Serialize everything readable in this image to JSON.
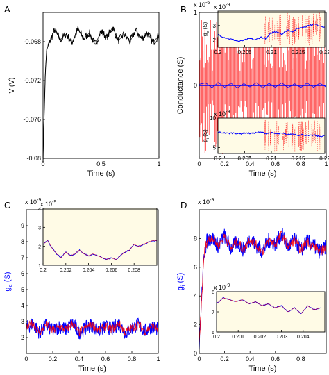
{
  "colors": {
    "axis": "#000000",
    "voltage_trace": "#000000",
    "mean_conductance": "#0000ff",
    "exact_conductance": "#ff0000",
    "inset_background": "#fffbe6"
  },
  "chart_data": [
    {
      "panel": "A",
      "type": "line",
      "xlabel": "Time (s)",
      "ylabel": "V (V)",
      "xlim": [
        0,
        1
      ],
      "ylim": [
        -0.08,
        -0.065
      ],
      "xticks": [
        0,
        0.5,
        1
      ],
      "yticks": [
        -0.068,
        -0.072,
        -0.076,
        -0.08
      ],
      "series": [
        {
          "x": [
            0,
            0.01,
            0.02,
            0.03,
            0.05,
            0.075,
            0.1,
            0.15,
            0.2,
            0.25,
            0.3,
            0.35,
            0.4,
            0.45,
            0.5,
            0.55,
            0.6,
            0.65,
            0.7,
            0.75,
            0.8,
            0.85,
            0.9,
            0.95,
            1.0
          ],
          "y": [
            -0.08,
            -0.0752,
            -0.0712,
            -0.069,
            -0.0682,
            -0.0675,
            -0.0668,
            -0.0678,
            -0.0672,
            -0.0681,
            -0.0667,
            -0.0677,
            -0.0671,
            -0.0683,
            -0.0669,
            -0.0676,
            -0.0665,
            -0.0679,
            -0.0672,
            -0.068,
            -0.0668,
            -0.0677,
            -0.0671,
            -0.0681,
            -0.0673
          ]
        }
      ]
    },
    {
      "panel": "B",
      "type": "line",
      "xlabel": "Time (s)",
      "ylabel": "Conductance (S)",
      "exponent_label": "x 10",
      "exponent": "-6",
      "xlim": [
        0,
        1
      ],
      "ylim": [
        -1,
        1
      ],
      "xticks": [
        0,
        0.2,
        0.4,
        0.6,
        0.8,
        1
      ],
      "yticks": [
        1,
        0
      ],
      "series": [
        {
          "x": [
            0,
            0.05,
            0.1,
            0.15,
            0.2,
            0.25,
            0.3,
            0.35,
            0.4,
            0.45,
            0.5,
            0.55,
            0.6,
            0.65,
            0.7,
            0.75,
            0.8,
            0.85,
            0.9,
            0.95,
            1.0
          ],
          "y": [
            0.3,
            0.7,
            -0.6,
            0.8,
            -0.5,
            0.6,
            -0.7,
            0.5,
            -0.4,
            0.75,
            -0.65,
            0.55,
            -0.5,
            0.7,
            -0.6,
            0.45,
            -0.55,
            0.65,
            -0.5,
            0.6,
            -0.45
          ]
        }
      ],
      "insets": [
        {
          "ylabel": "g_e (S)",
          "exponent_label": "x 10",
          "exponent": "-9",
          "xlim": [
            0.2,
            0.22
          ],
          "ylim": [
            1.5,
            4
          ],
          "xticks": [
            0.2,
            0.205,
            0.21,
            0.215,
            0.22
          ],
          "yticks": [
            2,
            3
          ],
          "series": [
            {
              "x": [
                0.2,
                0.201,
                0.202,
                0.203,
                0.204,
                0.205,
                0.206,
                0.207,
                0.208,
                0.209,
                0.21,
                0.211,
                0.212,
                0.213,
                0.214,
                0.215,
                0.216,
                0.217,
                0.218,
                0.219,
                0.22
              ],
              "y": [
                2.4,
                2.2,
                2.1,
                2.0,
                1.9,
                2.0,
                2.1,
                2.0,
                2.2,
                2.1,
                2.5,
                2.6,
                2.4,
                2.7,
                2.6,
                2.8,
                2.9,
                3.0,
                3.1,
                3.0,
                2.9
              ]
            }
          ]
        },
        {
          "ylabel": "g_i (S)",
          "exponent_label": "x 10",
          "exponent": "-9",
          "xlim": [
            0.2,
            0.22
          ],
          "ylim": [
            4,
            10
          ],
          "xticks": [
            0.2,
            0.205,
            0.21,
            0.215,
            0.22
          ],
          "yticks": [
            5,
            10
          ],
          "series": [
            {
              "x": [
                0.2,
                0.201,
                0.202,
                0.203,
                0.204,
                0.205,
                0.206,
                0.207,
                0.208,
                0.209,
                0.21,
                0.211,
                0.212,
                0.213,
                0.214,
                0.215,
                0.216,
                0.217,
                0.218,
                0.219,
                0.22
              ],
              "y": [
                7.6,
                7.5,
                7.4,
                7.5,
                7.3,
                7.5,
                7.4,
                7.5,
                7.6,
                7.4,
                7.5,
                7.3,
                7.4,
                7.2,
                7.3,
                7.1,
                7.2,
                7.0,
                7.1,
                6.9,
                7.0
              ]
            }
          ]
        }
      ]
    },
    {
      "panel": "C",
      "type": "line",
      "xlabel": "Time (s)",
      "ylabel": "g_e (S)",
      "exponent_label": "x 10",
      "exponent": "-9",
      "xlim": [
        0,
        1
      ],
      "ylim": [
        1,
        10
      ],
      "xticks": [
        0,
        0.2,
        0.4,
        0.6,
        0.8,
        1
      ],
      "yticks": [
        2,
        3,
        4,
        5,
        6,
        7,
        8,
        9
      ],
      "series": [
        {
          "x": [
            0,
            0.05,
            0.1,
            0.15,
            0.2,
            0.25,
            0.3,
            0.35,
            0.4,
            0.45,
            0.5,
            0.55,
            0.6,
            0.65,
            0.7,
            0.75,
            0.8,
            0.85,
            0.9,
            0.95,
            1.0
          ],
          "y": [
            2.6,
            2.9,
            2.3,
            2.8,
            2.4,
            2.7,
            2.5,
            2.9,
            2.3,
            2.6,
            2.8,
            2.4,
            2.7,
            2.5,
            2.9,
            2.3,
            2.6,
            2.8,
            2.4,
            2.7,
            2.5
          ]
        }
      ],
      "insets": [
        {
          "exponent_label": "x 10",
          "exponent": "-9",
          "xlim": [
            0.2,
            0.21
          ],
          "ylim": [
            1,
            4
          ],
          "xticks": [
            0.2,
            0.202,
            0.204,
            0.206,
            0.208
          ],
          "yticks": [
            1,
            2,
            3,
            4
          ],
          "series": [
            {
              "x": [
                0.2,
                0.2004,
                0.2008,
                0.2012,
                0.2016,
                0.202,
                0.2024,
                0.2028,
                0.2032,
                0.2036,
                0.204,
                0.2044,
                0.2048,
                0.2052,
                0.2056,
                0.206,
                0.2064,
                0.2068,
                0.2072,
                0.2076,
                0.208,
                0.2084,
                0.2088,
                0.2092,
                0.2096,
                0.21
              ],
              "y": [
                2.1,
                2.3,
                1.9,
                1.6,
                1.4,
                1.7,
                1.5,
                1.6,
                1.8,
                1.6,
                1.5,
                1.6,
                1.5,
                1.4,
                1.3,
                1.4,
                1.3,
                1.5,
                1.7,
                1.8,
                2.1,
                2.0,
                2.1,
                2.2,
                2.3,
                2.3
              ]
            }
          ]
        }
      ]
    },
    {
      "panel": "D",
      "type": "line",
      "xlabel": "Time (s)",
      "ylabel": "g_i (S)",
      "exponent_label": "x 10",
      "exponent": "-9",
      "xlim": [
        0,
        1
      ],
      "ylim": [
        0,
        10
      ],
      "xticks": [
        0,
        0.2,
        0.4,
        0.6,
        0.8
      ],
      "yticks": [
        0,
        2,
        4,
        6,
        8
      ],
      "series": [
        {
          "x": [
            0,
            0.02,
            0.04,
            0.06,
            0.1,
            0.15,
            0.2,
            0.25,
            0.3,
            0.35,
            0.4,
            0.45,
            0.5,
            0.55,
            0.6,
            0.65,
            0.7,
            0.75,
            0.8,
            0.85,
            0.9,
            0.95,
            1.0
          ],
          "y": [
            0.5,
            4.0,
            7.0,
            7.8,
            8.1,
            7.5,
            8.2,
            7.3,
            7.8,
            7.2,
            8.0,
            7.5,
            7.1,
            7.9,
            7.6,
            8.3,
            7.4,
            7.9,
            7.2,
            7.8,
            7.5,
            7.1,
            7.4
          ]
        }
      ],
      "insets": [
        {
          "exponent_label": "x 10",
          "exponent": "-9",
          "xlim": [
            0.2,
            0.205
          ],
          "ylim": [
            6,
            8
          ],
          "xticks": [
            0.2,
            0.201,
            0.202,
            0.203,
            0.204
          ],
          "yticks": [
            6,
            7,
            8
          ],
          "series": [
            {
              "x": [
                0.2,
                0.2003,
                0.2006,
                0.2009,
                0.2012,
                0.2015,
                0.2018,
                0.2021,
                0.2024,
                0.2027,
                0.203,
                0.2033,
                0.2036,
                0.2039,
                0.2042,
                0.2045,
                0.2048
              ],
              "y": [
                7.4,
                7.7,
                7.6,
                7.5,
                7.6,
                7.4,
                7.5,
                7.3,
                7.4,
                7.2,
                7.3,
                7.0,
                7.2,
                6.9,
                7.3,
                7.1,
                7.2
              ]
            }
          ]
        }
      ]
    }
  ]
}
